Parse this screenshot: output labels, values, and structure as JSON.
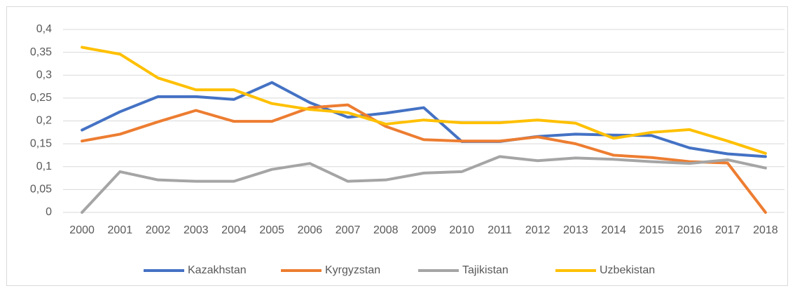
{
  "chart_data": {
    "type": "line",
    "categories": [
      "2000",
      "2001",
      "2002",
      "2003",
      "2004",
      "2005",
      "2006",
      "2007",
      "2008",
      "2009",
      "2010",
      "2011",
      "2012",
      "2013",
      "2014",
      "2015",
      "2016",
      "2017",
      "2018"
    ],
    "series": [
      {
        "name": "Kazakhstan",
        "color": "#4472c4",
        "values": [
          0.18,
          0.22,
          0.253,
          0.253,
          0.247,
          0.284,
          0.24,
          0.208,
          0.217,
          0.229,
          0.155,
          0.155,
          0.166,
          0.171,
          0.169,
          0.168,
          0.141,
          0.128,
          0.122
        ]
      },
      {
        "name": "Kyrgyzstan",
        "color": "#ed7d31",
        "values": [
          0.156,
          0.171,
          0.198,
          0.223,
          0.199,
          0.199,
          0.229,
          0.235,
          0.188,
          0.159,
          0.156,
          0.156,
          0.165,
          0.15,
          0.125,
          0.12,
          0.111,
          0.108,
          0
        ]
      },
      {
        "name": "Tajikistan",
        "color": "#a5a5a5",
        "values": [
          0,
          0.089,
          0.071,
          0.068,
          0.068,
          0.094,
          0.107,
          0.068,
          0.071,
          0.086,
          0.089,
          0.122,
          0.113,
          0.119,
          0.116,
          0.111,
          0.107,
          0.115,
          0.097
        ]
      },
      {
        "name": "Uzbekistan",
        "color": "#ffc000",
        "values": [
          0.361,
          0.346,
          0.294,
          0.268,
          0.268,
          0.238,
          0.225,
          0.218,
          0.193,
          0.202,
          0.196,
          0.196,
          0.202,
          0.195,
          0.162,
          0.175,
          0.181,
          0.156,
          0.129
        ]
      }
    ],
    "ylim": [
      0,
      0.4
    ],
    "yticks": [
      0,
      {
        "value": 0.05,
        "label": "0,05"
      },
      {
        "value": 0.1,
        "label": "0,1"
      },
      {
        "value": 0.15,
        "label": "0,15"
      },
      {
        "value": 0.2,
        "label": "0,2"
      },
      {
        "value": 0.25,
        "label": "0,25"
      },
      {
        "value": 0.3,
        "label": "0,3"
      },
      {
        "value": 0.35,
        "label": "0,35"
      },
      {
        "value": 0.4,
        "label": "0,4"
      }
    ],
    "grid": true,
    "legend": "bottom"
  }
}
